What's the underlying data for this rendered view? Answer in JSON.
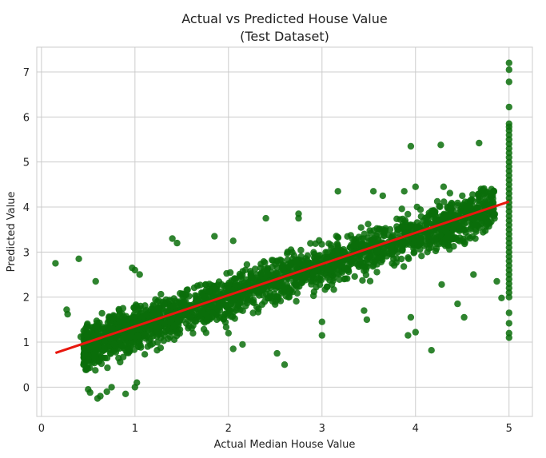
{
  "chart_data": {
    "type": "scatter",
    "title": "Actual vs Predicted House Value",
    "subtitle": "(Test Dataset)",
    "xlabel": "Actual Median House Value",
    "ylabel": "Predicted Value",
    "xlim": [
      -0.05,
      5.25
    ],
    "ylim": [
      -0.65,
      7.55
    ],
    "xticks": [
      0,
      1,
      2,
      3,
      4,
      5
    ],
    "yticks": [
      0,
      1,
      2,
      3,
      4,
      5,
      6,
      7
    ],
    "grid": true,
    "point_color": "#0a6e0a",
    "line_color": "#e8170e",
    "regression_line": {
      "x": [
        0.15,
        5.0
      ],
      "y": [
        0.76,
        4.12
      ]
    },
    "cloud": {
      "count": 2400,
      "x_range": [
        0.45,
        5.0
      ],
      "mean_y": {
        "intercept": 0.6,
        "slope": 0.7
      },
      "spread_y": 0.42
    },
    "points": [
      {
        "x": 0.15,
        "y": 2.75
      },
      {
        "x": 0.4,
        "y": 2.85
      },
      {
        "x": 0.27,
        "y": 1.72
      },
      {
        "x": 0.28,
        "y": 1.62
      },
      {
        "x": 0.42,
        "y": 1.12
      },
      {
        "x": 0.58,
        "y": 2.35
      },
      {
        "x": 0.45,
        "y": 0.5
      },
      {
        "x": 0.5,
        "y": -0.05
      },
      {
        "x": 0.52,
        "y": -0.12
      },
      {
        "x": 0.6,
        "y": -0.25
      },
      {
        "x": 0.63,
        "y": -0.2
      },
      {
        "x": 0.7,
        "y": -0.1
      },
      {
        "x": 0.9,
        "y": -0.15
      },
      {
        "x": 0.75,
        "y": 0.0
      },
      {
        "x": 1.0,
        "y": 0.0
      },
      {
        "x": 1.02,
        "y": 0.1
      },
      {
        "x": 0.97,
        "y": 2.65
      },
      {
        "x": 1.0,
        "y": 2.6
      },
      {
        "x": 1.05,
        "y": 2.5
      },
      {
        "x": 1.4,
        "y": 3.3
      },
      {
        "x": 1.45,
        "y": 3.2
      },
      {
        "x": 1.85,
        "y": 3.35
      },
      {
        "x": 2.05,
        "y": 3.25
      },
      {
        "x": 2.4,
        "y": 3.75
      },
      {
        "x": 2.75,
        "y": 3.85
      },
      {
        "x": 2.75,
        "y": 3.75
      },
      {
        "x": 3.17,
        "y": 4.35
      },
      {
        "x": 3.55,
        "y": 4.35
      },
      {
        "x": 3.65,
        "y": 4.25
      },
      {
        "x": 3.88,
        "y": 4.35
      },
      {
        "x": 4.0,
        "y": 4.45
      },
      {
        "x": 4.3,
        "y": 4.45
      },
      {
        "x": 4.5,
        "y": 4.25
      },
      {
        "x": 4.7,
        "y": 4.4
      },
      {
        "x": 4.8,
        "y": 4.3
      },
      {
        "x": 3.95,
        "y": 5.35
      },
      {
        "x": 4.27,
        "y": 5.38
      },
      {
        "x": 4.68,
        "y": 5.42
      },
      {
        "x": 2.6,
        "y": 0.5
      },
      {
        "x": 2.0,
        "y": 1.2
      },
      {
        "x": 2.05,
        "y": 0.85
      },
      {
        "x": 2.15,
        "y": 0.95
      },
      {
        "x": 2.52,
        "y": 0.75
      },
      {
        "x": 3.0,
        "y": 1.15
      },
      {
        "x": 3.0,
        "y": 1.45
      },
      {
        "x": 3.45,
        "y": 1.7
      },
      {
        "x": 3.48,
        "y": 1.5
      },
      {
        "x": 3.92,
        "y": 1.15
      },
      {
        "x": 4.0,
        "y": 1.22
      },
      {
        "x": 3.95,
        "y": 1.55
      },
      {
        "x": 4.17,
        "y": 0.82
      },
      {
        "x": 4.45,
        "y": 1.85
      },
      {
        "x": 4.52,
        "y": 1.55
      },
      {
        "x": 4.87,
        "y": 2.35
      },
      {
        "x": 4.92,
        "y": 1.98
      },
      {
        "x": 4.28,
        "y": 2.28
      },
      {
        "x": 4.62,
        "y": 2.5
      }
    ],
    "capped_column": {
      "x": 5.0,
      "y": [
        7.2,
        7.05,
        6.78,
        6.22,
        5.85,
        5.78,
        5.7,
        5.6,
        5.5,
        5.4,
        5.3,
        5.2,
        5.1,
        5.0,
        4.9,
        4.8,
        4.7,
        4.6,
        4.5,
        4.4,
        4.3,
        4.2,
        4.1,
        4.0,
        3.9,
        3.8,
        3.7,
        3.6,
        3.5,
        3.4,
        3.3,
        3.2,
        3.1,
        3.0,
        2.9,
        2.8,
        2.7,
        2.6,
        2.5,
        2.4,
        2.3,
        2.2,
        2.1,
        2.0,
        1.65,
        1.42,
        1.2,
        1.1
      ]
    }
  }
}
